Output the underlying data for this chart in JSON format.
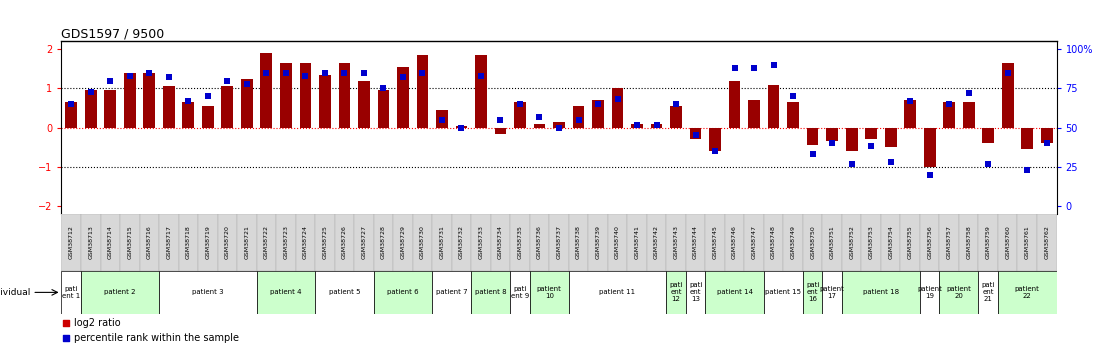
{
  "title": "GDS1597 / 9500",
  "samples": [
    "GSM38712",
    "GSM38713",
    "GSM38714",
    "GSM38715",
    "GSM38716",
    "GSM38717",
    "GSM38718",
    "GSM38719",
    "GSM38720",
    "GSM38721",
    "GSM38722",
    "GSM38723",
    "GSM38724",
    "GSM38725",
    "GSM38726",
    "GSM38727",
    "GSM38728",
    "GSM38729",
    "GSM38730",
    "GSM38731",
    "GSM38732",
    "GSM38733",
    "GSM38734",
    "GSM38735",
    "GSM38736",
    "GSM38737",
    "GSM38738",
    "GSM38739",
    "GSM38740",
    "GSM38741",
    "GSM38742",
    "GSM38743",
    "GSM38744",
    "GSM38745",
    "GSM38746",
    "GSM38747",
    "GSM38748",
    "GSM38749",
    "GSM38750",
    "GSM38751",
    "GSM38752",
    "GSM38753",
    "GSM38754",
    "GSM38755",
    "GSM38756",
    "GSM38757",
    "GSM38758",
    "GSM38759",
    "GSM38760",
    "GSM38761",
    "GSM38762"
  ],
  "log2_ratio": [
    0.65,
    0.97,
    0.97,
    1.4,
    1.4,
    1.07,
    0.65,
    0.55,
    1.07,
    1.25,
    1.9,
    1.65,
    1.65,
    1.35,
    1.65,
    1.2,
    0.95,
    1.55,
    1.85,
    0.45,
    0.05,
    1.85,
    -0.15,
    0.65,
    0.1,
    0.15,
    0.55,
    0.7,
    1.0,
    0.1,
    0.1,
    0.55,
    -0.3,
    -0.6,
    1.2,
    0.7,
    1.1,
    0.65,
    -0.45,
    -0.35,
    -0.6,
    -0.3,
    -0.5,
    0.7,
    -1.0,
    0.65,
    0.65,
    -0.4,
    1.65,
    -0.55,
    -0.4
  ],
  "percentile": [
    65,
    73,
    80,
    83,
    85,
    82,
    67,
    70,
    80,
    78,
    85,
    85,
    83,
    85,
    85,
    85,
    75,
    82,
    85,
    55,
    50,
    83,
    55,
    65,
    57,
    50,
    55,
    65,
    68,
    52,
    52,
    65,
    45,
    35,
    88,
    88,
    90,
    70,
    33,
    40,
    27,
    38,
    28,
    67,
    20,
    65,
    72,
    27,
    85,
    23,
    40
  ],
  "patients": [
    {
      "label": "pati\nent 1",
      "start": 0,
      "end": 1,
      "color": "#ffffff"
    },
    {
      "label": "patient 2",
      "start": 1,
      "end": 5,
      "color": "#ccffcc"
    },
    {
      "label": "patient 3",
      "start": 5,
      "end": 10,
      "color": "#ffffff"
    },
    {
      "label": "patient 4",
      "start": 10,
      "end": 13,
      "color": "#ccffcc"
    },
    {
      "label": "patient 5",
      "start": 13,
      "end": 16,
      "color": "#ffffff"
    },
    {
      "label": "patient 6",
      "start": 16,
      "end": 19,
      "color": "#ccffcc"
    },
    {
      "label": "patient 7",
      "start": 19,
      "end": 21,
      "color": "#ffffff"
    },
    {
      "label": "patient 8",
      "start": 21,
      "end": 23,
      "color": "#ccffcc"
    },
    {
      "label": "pati\nent 9",
      "start": 23,
      "end": 24,
      "color": "#ffffff"
    },
    {
      "label": "patient\n10",
      "start": 24,
      "end": 26,
      "color": "#ccffcc"
    },
    {
      "label": "patient 11",
      "start": 26,
      "end": 31,
      "color": "#ffffff"
    },
    {
      "label": "pati\nent\n12",
      "start": 31,
      "end": 32,
      "color": "#ccffcc"
    },
    {
      "label": "pati\nent\n13",
      "start": 32,
      "end": 33,
      "color": "#ffffff"
    },
    {
      "label": "patient 14",
      "start": 33,
      "end": 36,
      "color": "#ccffcc"
    },
    {
      "label": "patient 15",
      "start": 36,
      "end": 38,
      "color": "#ffffff"
    },
    {
      "label": "pati\nent\n16",
      "start": 38,
      "end": 39,
      "color": "#ccffcc"
    },
    {
      "label": "patient\n17",
      "start": 39,
      "end": 40,
      "color": "#ffffff"
    },
    {
      "label": "patient 18",
      "start": 40,
      "end": 44,
      "color": "#ccffcc"
    },
    {
      "label": "patient\n19",
      "start": 44,
      "end": 45,
      "color": "#ffffff"
    },
    {
      "label": "patient\n20",
      "start": 45,
      "end": 47,
      "color": "#ccffcc"
    },
    {
      "label": "pati\nent\n21",
      "start": 47,
      "end": 48,
      "color": "#ffffff"
    },
    {
      "label": "patient\n22",
      "start": 48,
      "end": 51,
      "color": "#ccffcc"
    }
  ],
  "bar_color": "#990000",
  "dot_color": "#0000cc",
  "bg_color": "#ffffff"
}
